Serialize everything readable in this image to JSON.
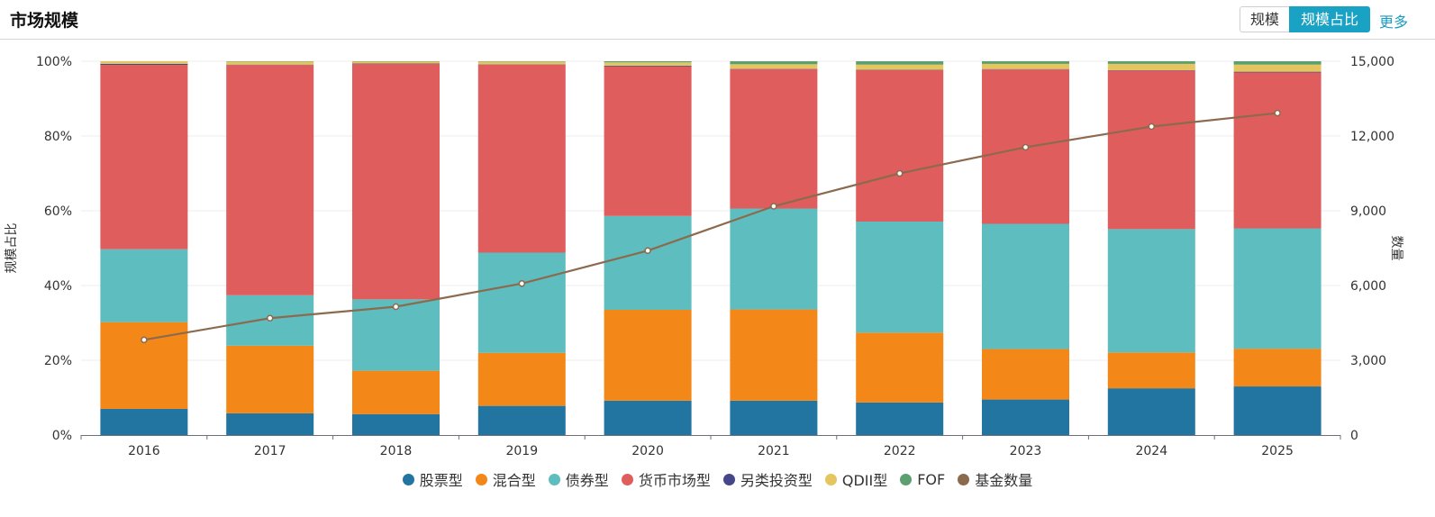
{
  "header": {
    "title": "市场规模",
    "tabs": [
      {
        "label": "规模",
        "active": false
      },
      {
        "label": "规模占比",
        "active": true
      }
    ],
    "more_label": "更多"
  },
  "chart_data": {
    "type": "bar",
    "stacked": true,
    "title": "",
    "categories": [
      "2016",
      "2017",
      "2018",
      "2019",
      "2020",
      "2021",
      "2022",
      "2023",
      "2024",
      "2025"
    ],
    "y_left": {
      "label": "规模占比",
      "ticks": [
        "0%",
        "20%",
        "40%",
        "60%",
        "80%",
        "100%"
      ],
      "lim": [
        0,
        100
      ]
    },
    "y_right": {
      "label": "数量",
      "ticks": [
        "0",
        "3,000",
        "6,000",
        "9,000",
        "12,000",
        "15,000"
      ],
      "lim": [
        0,
        15000
      ]
    },
    "series": [
      {
        "name": "股票型",
        "type": "bar",
        "color": "#2275a1",
        "values": [
          7.0,
          5.8,
          5.6,
          7.8,
          9.2,
          9.2,
          8.7,
          9.5,
          12.5,
          13.0
        ]
      },
      {
        "name": "混合型",
        "type": "bar",
        "color": "#f38818",
        "values": [
          23.2,
          18.1,
          11.6,
          14.2,
          24.3,
          24.4,
          18.7,
          13.5,
          9.6,
          10.1
        ]
      },
      {
        "name": "债券型",
        "type": "bar",
        "color": "#5dbdbf",
        "values": [
          19.5,
          13.5,
          19.1,
          26.8,
          25.1,
          27.0,
          29.7,
          33.5,
          33.0,
          32.2
        ]
      },
      {
        "name": "货币市场型",
        "type": "bar",
        "color": "#df5d5d",
        "values": [
          49.3,
          61.6,
          63.0,
          50.3,
          40.0,
          37.3,
          40.5,
          41.3,
          42.4,
          41.7
        ]
      },
      {
        "name": "另类投资型",
        "type": "bar",
        "color": "#46468a",
        "values": [
          0.3,
          0.1,
          0.1,
          0.1,
          0.2,
          0.1,
          0.1,
          0.1,
          0.1,
          0.2
        ]
      },
      {
        "name": "QDII型",
        "type": "bar",
        "color": "#e4c55e",
        "values": [
          0.7,
          0.8,
          0.5,
          0.7,
          0.9,
          1.2,
          1.4,
          1.4,
          1.7,
          1.9
        ]
      },
      {
        "name": "FOF",
        "type": "bar",
        "color": "#5d9f6f",
        "values": [
          0.0,
          0.1,
          0.1,
          0.1,
          0.3,
          0.8,
          0.9,
          0.7,
          0.7,
          0.9
        ]
      },
      {
        "name": "基金数量",
        "type": "line",
        "axis": "right",
        "color": "#8c6a4e",
        "values": [
          3820,
          4690,
          5150,
          6080,
          7400,
          9180,
          10500,
          11550,
          12380,
          12920
        ]
      }
    ],
    "grid": true,
    "legend_position": "bottom"
  }
}
